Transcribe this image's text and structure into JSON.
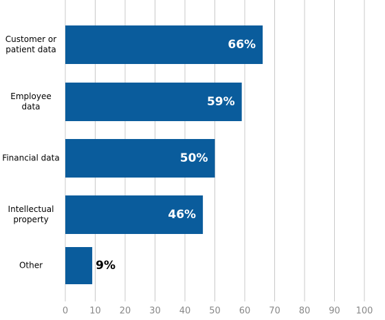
{
  "chart_data": {
    "type": "bar",
    "orientation": "horizontal",
    "categories": [
      "Customer or patient data",
      "Employee data",
      "Financial data",
      "Intellectual property",
      "Other"
    ],
    "values": [
      66,
      59,
      50,
      46,
      9
    ],
    "value_labels": [
      "66%",
      "59%",
      "50%",
      "46%",
      "9%"
    ],
    "color": "#0a5c9c",
    "xlim": [
      0,
      100
    ],
    "xticks": [
      0,
      10,
      20,
      30,
      40,
      50,
      60,
      70,
      80,
      90,
      100
    ],
    "grid": true
  }
}
